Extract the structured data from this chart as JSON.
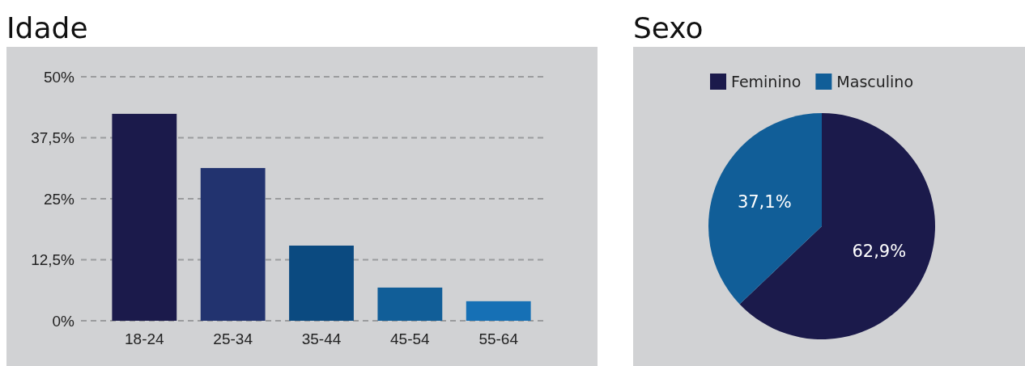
{
  "chart_data": [
    {
      "type": "bar",
      "title": "Idade",
      "categories": [
        "18-24",
        "25-34",
        "35-44",
        "45-54",
        "55-64"
      ],
      "values": [
        42.4,
        31.3,
        15.4,
        6.8,
        4.0
      ],
      "colors": [
        "#1b1a4b",
        "#22336f",
        "#0b4a80",
        "#115e98",
        "#1670b5"
      ],
      "ylim": [
        0,
        50
      ],
      "yticks": [
        {
          "value": 0,
          "label": "0%"
        },
        {
          "value": 12.5,
          "label": "12,5%"
        },
        {
          "value": 25,
          "label": "25%"
        },
        {
          "value": 37.5,
          "label": "37,5%"
        },
        {
          "value": 50,
          "label": "50%"
        }
      ],
      "grid": "y"
    },
    {
      "type": "pie",
      "title": "Sexo",
      "categories": [
        "Feminino",
        "Masculino"
      ],
      "values": [
        62.9,
        37.1
      ],
      "colors": [
        "#1b1a4b",
        "#115e98"
      ],
      "value_labels": [
        "62,9%",
        "37,1%"
      ],
      "legend": "top"
    }
  ]
}
